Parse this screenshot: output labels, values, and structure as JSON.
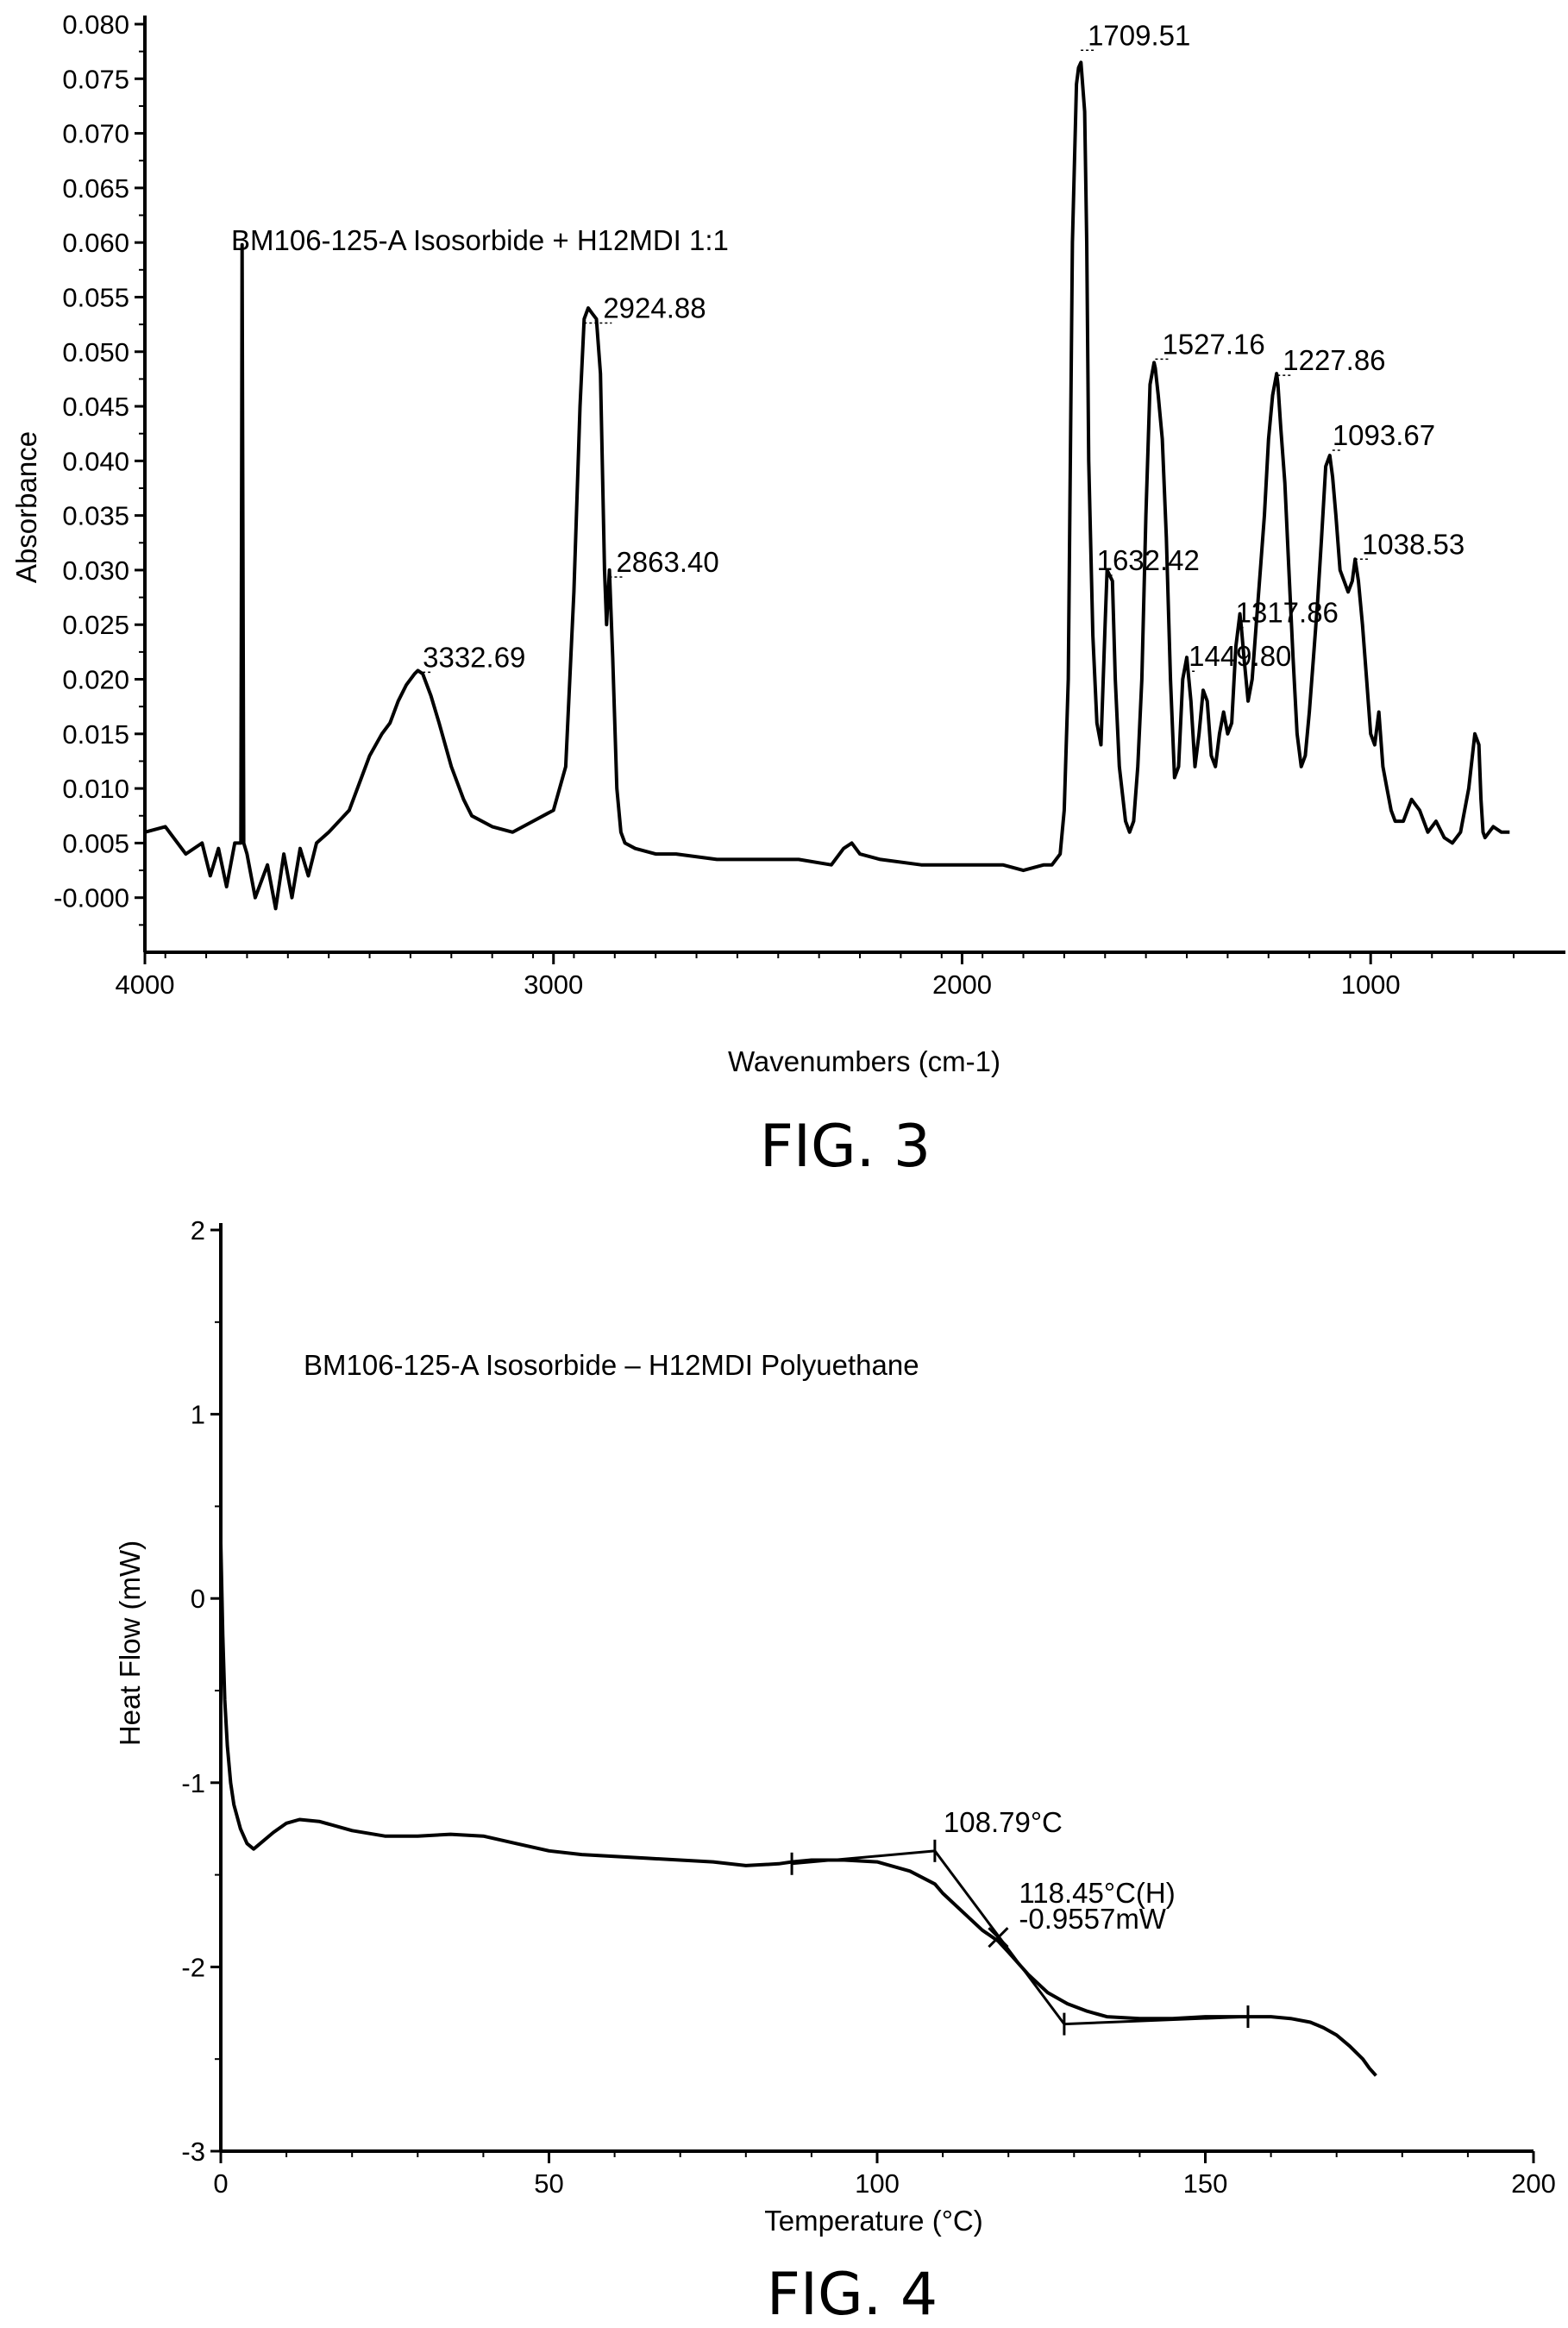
{
  "chart_data": [
    {
      "type": "line",
      "title": "BM106-125-A Isosorbide + H12MDI 1:1",
      "caption": "FIG. 3",
      "xlabel": "Wavenumbers (cm-1)",
      "ylabel": "Absorbance",
      "xlim": [
        4000,
        650
      ],
      "ylim": [
        -0.005,
        0.08
      ],
      "x_reversed": true,
      "grid": false,
      "xticks": [
        4000,
        3000,
        2000,
        1000
      ],
      "xtick_labels": [
        "4000",
        "3000",
        "2000",
        "1000"
      ],
      "yticks": [
        0.08,
        0.075,
        0.07,
        0.065,
        0.06,
        0.055,
        0.05,
        0.045,
        0.04,
        0.035,
        0.03,
        0.025,
        0.02,
        0.015,
        0.01,
        0.005,
        0.0
      ],
      "ytick_labels": [
        "0.080",
        "0.075",
        "0.070",
        "0.065",
        "0.060",
        "0.055",
        "0.050",
        "0.045",
        "0.040",
        "0.035",
        "0.030",
        "0.025",
        "0.020",
        "0.015",
        "0.010",
        "0.005",
        "-0.000"
      ],
      "series": [
        {
          "x": [
            4000,
            3950,
            3900,
            3860,
            3840,
            3820,
            3800,
            3780,
            3765,
            3762,
            3758,
            3750,
            3730,
            3700,
            3680,
            3660,
            3640,
            3620,
            3600,
            3580,
            3550,
            3500,
            3470,
            3450,
            3420,
            3400,
            3380,
            3360,
            3340,
            3332,
            3320,
            3300,
            3280,
            3250,
            3220,
            3200,
            3150,
            3100,
            3050,
            3000,
            2970,
            2950,
            2935,
            2925,
            2915,
            2905,
            2895,
            2885,
            2875,
            2870,
            2863,
            2855,
            2845,
            2835,
            2825,
            2800,
            2750,
            2700,
            2600,
            2500,
            2400,
            2320,
            2290,
            2270,
            2250,
            2200,
            2100,
            2000,
            1900,
            1850,
            1800,
            1780,
            1760,
            1750,
            1740,
            1730,
            1720,
            1715,
            1709,
            1700,
            1695,
            1690,
            1680,
            1670,
            1660,
            1650,
            1645,
            1632,
            1625,
            1615,
            1600,
            1590,
            1580,
            1570,
            1560,
            1550,
            1540,
            1530,
            1527,
            1520,
            1510,
            1500,
            1490,
            1480,
            1470,
            1460,
            1450,
            1440,
            1430,
            1420,
            1410,
            1400,
            1390,
            1380,
            1370,
            1360,
            1350,
            1340,
            1330,
            1320,
            1317,
            1310,
            1300,
            1290,
            1280,
            1270,
            1260,
            1250,
            1240,
            1230,
            1227,
            1220,
            1210,
            1200,
            1190,
            1180,
            1170,
            1160,
            1150,
            1140,
            1130,
            1120,
            1110,
            1100,
            1093,
            1085,
            1075,
            1065,
            1055,
            1045,
            1038,
            1030,
            1020,
            1010,
            1000,
            990,
            980,
            970,
            960,
            950,
            940,
            930,
            920,
            900,
            880,
            860,
            840,
            820,
            800,
            780,
            760,
            745,
            735,
            730,
            725,
            720,
            700,
            680,
            660
          ],
          "y": [
            0.006,
            0.0065,
            0.004,
            0.005,
            0.002,
            0.0045,
            0.001,
            0.005,
            0.005,
            0.0598,
            0.005,
            0.004,
            0.0,
            0.003,
            -0.001,
            0.004,
            0.0,
            0.0045,
            0.002,
            0.005,
            0.006,
            0.008,
            0.011,
            0.013,
            0.015,
            0.016,
            0.018,
            0.0195,
            0.0205,
            0.0208,
            0.0205,
            0.0185,
            0.016,
            0.012,
            0.009,
            0.0075,
            0.0065,
            0.006,
            0.007,
            0.008,
            0.012,
            0.028,
            0.045,
            0.053,
            0.054,
            0.0535,
            0.053,
            0.048,
            0.03,
            0.025,
            0.03,
            0.022,
            0.01,
            0.006,
            0.005,
            0.0045,
            0.004,
            0.004,
            0.0035,
            0.0035,
            0.0035,
            0.003,
            0.0045,
            0.005,
            0.004,
            0.0035,
            0.003,
            0.003,
            0.003,
            0.0025,
            0.003,
            0.003,
            0.004,
            0.008,
            0.02,
            0.06,
            0.0745,
            0.076,
            0.0765,
            0.072,
            0.06,
            0.04,
            0.024,
            0.016,
            0.014,
            0.025,
            0.03,
            0.029,
            0.02,
            0.012,
            0.007,
            0.006,
            0.007,
            0.012,
            0.02,
            0.035,
            0.047,
            0.049,
            0.0485,
            0.046,
            0.042,
            0.033,
            0.02,
            0.011,
            0.012,
            0.02,
            0.022,
            0.018,
            0.012,
            0.015,
            0.019,
            0.018,
            0.013,
            0.012,
            0.015,
            0.017,
            0.015,
            0.016,
            0.023,
            0.026,
            0.025,
            0.022,
            0.018,
            0.02,
            0.025,
            0.03,
            0.035,
            0.042,
            0.046,
            0.048,
            0.047,
            0.043,
            0.038,
            0.03,
            0.022,
            0.015,
            0.012,
            0.013,
            0.017,
            0.022,
            0.027,
            0.033,
            0.0395,
            0.0405,
            0.0385,
            0.035,
            0.03,
            0.029,
            0.028,
            0.029,
            0.031,
            0.029,
            0.025,
            0.02,
            0.015,
            0.014,
            0.017,
            0.012,
            0.01,
            0.008,
            0.007,
            0.007,
            0.007,
            0.009,
            0.008,
            0.006,
            0.007,
            0.0055,
            0.005,
            0.006,
            0.01,
            0.015,
            0.014,
            0.009,
            0.006,
            0.0055,
            0.0065,
            0.006,
            0.006
          ]
        }
      ],
      "annotations": [
        {
          "text": "1709.51",
          "x": 1709.51,
          "y": 0.0765
        },
        {
          "text": "2924.88",
          "x": 2924.88,
          "y": 0.0535
        },
        {
          "text": "1527.16",
          "x": 1527.16,
          "y": 0.049
        },
        {
          "text": "1227.86",
          "x": 1227.86,
          "y": 0.048
        },
        {
          "text": "1093.67",
          "x": 1093.67,
          "y": 0.0405
        },
        {
          "text": "2863.40",
          "x": 2863.4,
          "y": 0.03
        },
        {
          "text": "1632.42",
          "x": 1632.42,
          "y": 0.03
        },
        {
          "text": "1038.53",
          "x": 1038.53,
          "y": 0.031
        },
        {
          "text": "1317.86",
          "x": 1317.86,
          "y": 0.026
        },
        {
          "text": "1449.80",
          "x": 1449.8,
          "y": 0.022
        },
        {
          "text": "3332.69",
          "x": 3332.69,
          "y": 0.0208
        }
      ]
    },
    {
      "type": "line",
      "title": "BM106-125-A Isosorbide – H12MDI Polyuethane",
      "caption": "FIG. 4",
      "xlabel": "Temperature (°C)",
      "ylabel": "Heat Flow (mW)",
      "xlim": [
        0,
        200
      ],
      "ylim": [
        -3,
        2
      ],
      "grid": false,
      "xticks": [
        0,
        50,
        100,
        150,
        200
      ],
      "xtick_labels": [
        "0",
        "50",
        "100",
        "150",
        "200"
      ],
      "yticks": [
        2,
        1,
        0,
        -1,
        -2,
        -3
      ],
      "ytick_labels": [
        "2",
        "1",
        "0",
        "-1",
        "-2",
        "-3"
      ],
      "series": [
        {
          "x": [
            0.0,
            0.3,
            0.6,
            1.0,
            1.5,
            2.0,
            3.0,
            4.0,
            5.0,
            6.0,
            8.0,
            10.0,
            12.0,
            15.0,
            20.0,
            25.0,
            30.0,
            35.0,
            40.0,
            45.0,
            50.0,
            55.0,
            60.0,
            65.0,
            70.0,
            75.0,
            80.0,
            85.0,
            87.0,
            90.0,
            95.0,
            100.0,
            105.0,
            108.8,
            110.0,
            113.0,
            116.0,
            118.45,
            120.0,
            123.0,
            126.0,
            129.0,
            132.0,
            135.0,
            140.0,
            145.0,
            150.0,
            155.0,
            157.0,
            160.0,
            163.0,
            166.0,
            168.0,
            170.0,
            172.0,
            174.0,
            175.0,
            176.0
          ],
          "y": [
            0.3,
            -0.2,
            -0.55,
            -0.8,
            -1.0,
            -1.12,
            -1.25,
            -1.33,
            -1.36,
            -1.33,
            -1.27,
            -1.22,
            -1.2,
            -1.21,
            -1.26,
            -1.29,
            -1.29,
            -1.28,
            -1.29,
            -1.33,
            -1.37,
            -1.39,
            -1.4,
            -1.41,
            -1.42,
            -1.43,
            -1.45,
            -1.44,
            -1.43,
            -1.42,
            -1.42,
            -1.43,
            -1.48,
            -1.55,
            -1.6,
            -1.7,
            -1.8,
            -1.86,
            -1.92,
            -2.04,
            -2.14,
            -2.2,
            -2.24,
            -2.27,
            -2.28,
            -2.28,
            -2.27,
            -2.27,
            -2.27,
            -2.27,
            -2.28,
            -2.3,
            -2.33,
            -2.37,
            -2.43,
            -2.5,
            -2.55,
            -2.59
          ]
        }
      ],
      "tangents": [
        {
          "x": [
            87.0,
            108.79
          ],
          "y": [
            -1.44,
            -1.37
          ]
        },
        {
          "x": [
            108.79,
            128.5
          ],
          "y": [
            -1.37,
            -2.31
          ]
        },
        {
          "x": [
            128.5,
            156.5
          ],
          "y": [
            -2.31,
            -2.27
          ]
        }
      ],
      "markers": [
        {
          "x": 87.0,
          "y": -1.44
        },
        {
          "x": 108.79,
          "y": -1.37
        },
        {
          "x": 118.45,
          "y": -1.84
        },
        {
          "x": 128.5,
          "y": -2.31
        },
        {
          "x": 156.5,
          "y": -2.27
        }
      ],
      "annotations": [
        {
          "text": "108.79°C",
          "x": 108.79,
          "y": -1.37
        },
        {
          "text": "118.45°C(H)",
          "x": 118.45,
          "y": -1.84
        },
        {
          "text": "-0.9557mW",
          "x": 118.45,
          "y": -1.84
        }
      ]
    }
  ]
}
